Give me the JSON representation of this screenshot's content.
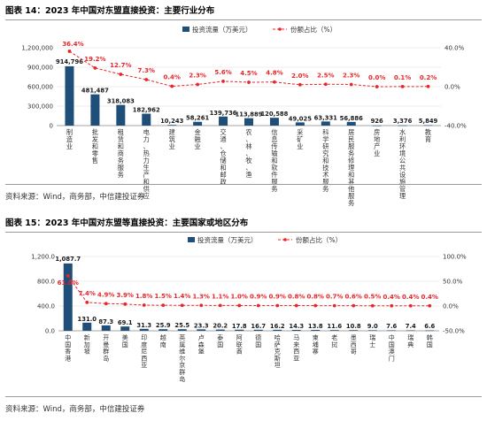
{
  "figures": [
    {
      "title": "图表 14：2023 年中国对东盟直接投资：主要行业分布",
      "source": "资料来源：Wind，商务部，中信建投证券",
      "legend": {
        "bar_label": "投资流量（万美元）",
        "line_label": "份额占比（%）"
      },
      "colors": {
        "bar": "#1f4e79",
        "line": "#e8262a",
        "grid": "#d9d9d9",
        "label": "#e8262a"
      },
      "chart_data": {
        "type": "bar",
        "categories": [
          "制造业",
          "批发和零售",
          "租赁和商务服务",
          "电力、热力生产和供应",
          "建筑业",
          "金融业",
          "交通、仓储和邮政",
          "农、林、牧、渔",
          "信息传输和软件服务",
          "采矿业",
          "科学研究和技术服务",
          "居民服务修理和其他服务",
          "房地产业",
          "水利环境公共设施管理",
          "教育"
        ],
        "series": [
          {
            "name": "投资流量（万美元）",
            "type": "bar",
            "axis": "left",
            "values": [
              914796,
              481487,
              318083,
              182962,
              10243,
              58261,
              139736,
              113889,
              120588,
              49025,
              63331,
              56886,
              926,
              3376,
              5849
            ],
            "labels": [
              "914,796",
              "481,487",
              "318,083",
              "182,962",
              "10,243",
              "58,261",
              "139,736",
              "113,889",
              "120,588",
              "49,025",
              "63,331",
              "56,886",
              "926",
              "3,376",
              "5,849"
            ]
          },
          {
            "name": "份额占比（%）",
            "type": "line",
            "axis": "right",
            "values": [
              36.4,
              19.2,
              12.7,
              7.3,
              0.4,
              2.3,
              5.6,
              4.5,
              4.8,
              2.0,
              2.5,
              2.3,
              0.0,
              0.1,
              0.2
            ],
            "labels": [
              "36.4%",
              "19.2%",
              "12.7%",
              "7.3%",
              "0.4%",
              "2.3%",
              "5.6%",
              "4.5%",
              "4.8%",
              "2.0%",
              "2.5%",
              "2.3%",
              "0.0%",
              "0.1%",
              "0.2%"
            ]
          }
        ],
        "left_axis": {
          "min": 0,
          "max": 1200000,
          "ticks": [
            "0",
            "300,000",
            "600,000",
            "900,000",
            "1,200,000"
          ]
        },
        "right_axis": {
          "min": -40,
          "max": 40,
          "ticks": [
            "-40.0%",
            "0.0%",
            "40.0%"
          ]
        },
        "grid": true,
        "legend_position": "top"
      }
    },
    {
      "title": "图表 15：2023 年中国对东盟等直接投资：主要国家或地区分布",
      "source": "资料来源：Wind，商务部，中信建投证券",
      "legend": {
        "bar_label": "投资流量（万美元）",
        "line_label": "份额占比（%）"
      },
      "colors": {
        "bar": "#1f4e79",
        "line": "#e8262a",
        "grid": "#d9d9d9",
        "label": "#e8262a"
      },
      "chart_data": {
        "type": "bar",
        "categories": [
          "中国香港",
          "新加坡",
          "开曼群岛",
          "美国",
          "印度尼西亚",
          "越南",
          "英属维尔京群岛",
          "卢森堡",
          "泰国",
          "阿联酋",
          "德国",
          "哈萨克斯坦",
          "马来西亚",
          "柬埔寨",
          "老挝",
          "墨西哥",
          "瑞士",
          "中国澳门",
          "瑞典",
          "韩国"
        ],
        "series": [
          {
            "name": "投资流量（万美元）",
            "type": "bar",
            "axis": "left",
            "values": [
              1087.7,
              131.0,
              87.3,
              69.1,
              31.3,
              25.9,
              25.5,
              23.3,
              20.2,
              17.8,
              16.7,
              16.2,
              14.3,
              13.8,
              11.6,
              10.8,
              9.0,
              7.6,
              7.4,
              6.6
            ],
            "labels": [
              "1,087.7",
              "131.0",
              "87.3",
              "69.1",
              "31.3",
              "25.9",
              "25.5",
              "23.3",
              "20.2",
              "17.8",
              "16.7",
              "16.2",
              "14.3",
              "13.8",
              "11.6",
              "10.8",
              "9.0",
              "7.6",
              "7.4",
              "6.6"
            ]
          },
          {
            "name": "份额占比（%）",
            "type": "line",
            "axis": "right",
            "values": [
              61.0,
              7.4,
              4.9,
              3.9,
              1.8,
              1.5,
              1.4,
              1.3,
              1.1,
              1.0,
              0.9,
              0.9,
              0.8,
              0.8,
              0.7,
              0.6,
              0.5,
              0.4,
              0.4,
              0.4
            ],
            "labels": [
              "61.0%",
              "7.4%",
              "4.9%",
              "3.9%",
              "1.8%",
              "1.5%",
              "1.4%",
              "1.3%",
              "1.1%",
              "1.0%",
              "0.9%",
              "0.9%",
              "0.8%",
              "0.8%",
              "0.7%",
              "0.6%",
              "0.5%",
              "0.4%",
              "0.4%",
              "0.4%"
            ]
          }
        ],
        "left_axis": {
          "min": 0,
          "max": 1200,
          "ticks": [
            "0.0",
            "400.0",
            "800.0",
            "1,200.0"
          ]
        },
        "right_axis": {
          "min": -50,
          "max": 100,
          "ticks": [
            "-50.0%",
            "0.0%",
            "50.0%",
            "100.0%"
          ]
        },
        "grid": true,
        "legend_position": "top"
      }
    }
  ]
}
